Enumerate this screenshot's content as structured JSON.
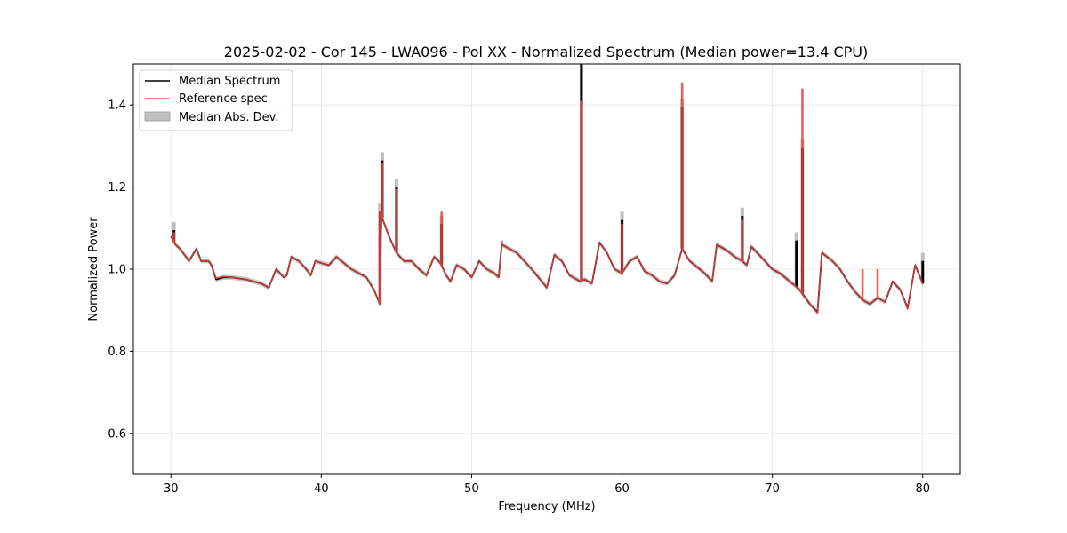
{
  "chart_data": {
    "type": "line",
    "title": "2025-02-02 - Cor 145 - LWA096 - Pol XX - Normalized Spectrum (Median power=13.4 CPU)",
    "xlabel": "Frequency (MHz)",
    "ylabel": "Normalized Power",
    "xlim": [
      27.5,
      82.5
    ],
    "ylim": [
      0.5,
      1.5
    ],
    "xticks": [
      30,
      40,
      50,
      60,
      70,
      80
    ],
    "yticks": [
      0.6,
      0.8,
      1.0,
      1.2,
      1.4
    ],
    "xtick_labels": [
      "30",
      "40",
      "50",
      "60",
      "70",
      "80"
    ],
    "ytick_labels": [
      "0.6",
      "0.8",
      "1.0",
      "1.2",
      "1.4"
    ],
    "grid": true,
    "legend_position": "top-left",
    "colors": {
      "median": "#000000",
      "reference": "#e8413c",
      "mad": "#bfbfbf"
    },
    "series": [
      {
        "name": "Median Spectrum",
        "x": [
          30.0,
          30.3,
          30.6,
          31.0,
          31.2,
          31.7,
          32.0,
          32.5,
          32.7,
          33.0,
          33.5,
          34.0,
          35.0,
          36.0,
          36.5,
          37.0,
          37.5,
          37.7,
          38.0,
          38.5,
          39.0,
          39.3,
          39.6,
          40.0,
          40.5,
          41.0,
          41.5,
          42.0,
          42.5,
          43.0,
          43.5,
          43.9,
          44.0,
          44.5,
          45.0,
          45.5,
          46.0,
          46.5,
          47.0,
          47.5,
          47.8,
          48.0,
          48.3,
          48.6,
          49.0,
          49.5,
          50.0,
          50.5,
          51.0,
          51.5,
          51.8,
          52.0,
          53.0,
          54.0,
          55.0,
          55.5,
          56.0,
          56.5,
          57.0,
          57.2,
          57.5,
          58.0,
          58.5,
          59.0,
          59.5,
          60.0,
          60.5,
          61.0,
          61.5,
          62.0,
          62.5,
          63.0,
          63.5,
          64.0,
          64.5,
          65.0,
          65.5,
          66.0,
          66.3,
          67.0,
          67.5,
          68.0,
          68.3,
          68.6,
          69.0,
          69.5,
          70.0,
          70.5,
          71.0,
          71.5,
          71.8,
          72.0,
          72.5,
          73.0,
          73.3,
          74.0,
          74.5,
          75.0,
          75.5,
          76.0,
          76.5,
          77.0,
          77.5,
          78.0,
          78.5,
          79.0,
          79.5,
          80.0
        ],
        "values": [
          1.08,
          1.06,
          1.05,
          1.03,
          1.02,
          1.05,
          1.02,
          1.02,
          1.01,
          0.975,
          0.98,
          0.98,
          0.975,
          0.965,
          0.955,
          1.0,
          0.98,
          0.985,
          1.03,
          1.02,
          1.0,
          0.985,
          1.02,
          1.015,
          1.01,
          1.03,
          1.015,
          1.0,
          0.99,
          0.98,
          0.95,
          0.915,
          1.13,
          1.08,
          1.04,
          1.02,
          1.02,
          1.0,
          0.985,
          1.03,
          1.02,
          1.01,
          0.985,
          0.97,
          1.01,
          1.0,
          0.98,
          1.02,
          1.0,
          0.99,
          0.98,
          1.06,
          1.04,
          1.0,
          0.955,
          1.035,
          1.02,
          0.985,
          0.975,
          0.97,
          0.975,
          0.965,
          1.065,
          1.04,
          1.0,
          0.99,
          1.02,
          1.03,
          0.995,
          0.985,
          0.97,
          0.965,
          0.985,
          1.05,
          1.02,
          1.005,
          0.99,
          0.97,
          1.06,
          1.045,
          1.03,
          1.02,
          1.01,
          1.055,
          1.04,
          1.02,
          1.0,
          0.99,
          0.975,
          0.96,
          0.95,
          0.94,
          0.915,
          0.895,
          1.04,
          1.02,
          1.0,
          0.97,
          0.945,
          0.925,
          0.915,
          0.93,
          0.92,
          0.97,
          0.95,
          0.905,
          1.01,
          0.965
        ],
        "spikes": [
          [
            30.2,
            1.095
          ],
          [
            43.9,
            1.14
          ],
          [
            44.05,
            1.265
          ],
          [
            45.0,
            1.2
          ],
          [
            48.0,
            1.11
          ],
          [
            57.3,
            1.5
          ],
          [
            60.0,
            1.12
          ],
          [
            64.0,
            1.395
          ],
          [
            68.0,
            1.13
          ],
          [
            71.6,
            1.07
          ],
          [
            72.0,
            1.295
          ],
          [
            80.0,
            1.02
          ]
        ]
      },
      {
        "name": "Reference spec",
        "x": [
          30.0,
          30.3,
          30.6,
          31.0,
          31.2,
          31.7,
          32.0,
          32.5,
          32.7,
          33.0,
          33.5,
          34.0,
          35.0,
          36.0,
          36.5,
          37.0,
          37.5,
          37.7,
          38.0,
          38.5,
          39.0,
          39.3,
          39.6,
          40.0,
          40.5,
          41.0,
          41.5,
          42.0,
          42.5,
          43.0,
          43.5,
          43.9,
          44.0,
          44.5,
          45.0,
          45.5,
          46.0,
          46.5,
          47.0,
          47.5,
          47.8,
          48.0,
          48.3,
          48.6,
          49.0,
          49.5,
          50.0,
          50.5,
          51.0,
          51.5,
          51.8,
          52.0,
          53.0,
          54.0,
          55.0,
          55.5,
          56.0,
          56.5,
          57.0,
          57.2,
          57.5,
          58.0,
          58.5,
          59.0,
          59.5,
          60.0,
          60.5,
          61.0,
          61.5,
          62.0,
          62.5,
          63.0,
          63.5,
          64.0,
          64.5,
          65.0,
          65.5,
          66.0,
          66.3,
          67.0,
          67.5,
          68.0,
          68.3,
          68.6,
          69.0,
          69.5,
          70.0,
          70.5,
          71.0,
          71.5,
          71.8,
          72.0,
          72.5,
          73.0,
          73.3,
          74.0,
          74.5,
          75.0,
          75.5,
          76.0,
          76.5,
          77.0,
          77.5,
          78.0,
          78.5,
          79.0,
          79.5,
          80.0
        ],
        "values": [
          1.08,
          1.06,
          1.05,
          1.03,
          1.02,
          1.05,
          1.02,
          1.02,
          1.01,
          0.978,
          0.982,
          0.98,
          0.975,
          0.965,
          0.955,
          1.0,
          0.98,
          0.985,
          1.03,
          1.02,
          1.0,
          0.985,
          1.02,
          1.015,
          1.01,
          1.03,
          1.015,
          1.0,
          0.99,
          0.98,
          0.95,
          0.915,
          1.13,
          1.08,
          1.04,
          1.02,
          1.02,
          1.0,
          0.985,
          1.03,
          1.02,
          1.01,
          0.985,
          0.97,
          1.01,
          1.0,
          0.98,
          1.02,
          1.0,
          0.99,
          0.98,
          1.06,
          1.04,
          1.0,
          0.955,
          1.035,
          1.02,
          0.985,
          0.975,
          0.97,
          0.975,
          0.965,
          1.065,
          1.04,
          1.0,
          0.99,
          1.02,
          1.03,
          0.995,
          0.985,
          0.97,
          0.965,
          0.985,
          1.05,
          1.02,
          1.005,
          0.99,
          0.97,
          1.06,
          1.045,
          1.03,
          1.02,
          1.01,
          1.055,
          1.04,
          1.02,
          1.0,
          0.99,
          0.975,
          0.96,
          0.95,
          0.94,
          0.915,
          0.893,
          1.04,
          1.02,
          1.0,
          0.97,
          0.945,
          0.925,
          0.915,
          0.93,
          0.92,
          0.97,
          0.95,
          0.903,
          1.01,
          0.963
        ],
        "spikes": [
          [
            30.2,
            1.09
          ],
          [
            43.9,
            1.14
          ],
          [
            44.05,
            1.26
          ],
          [
            45.0,
            1.195
          ],
          [
            48.0,
            1.14
          ],
          [
            52.0,
            1.07
          ],
          [
            57.3,
            1.41
          ],
          [
            60.0,
            1.11
          ],
          [
            64.0,
            1.455
          ],
          [
            68.0,
            1.12
          ],
          [
            72.0,
            1.44
          ],
          [
            76.0,
            1.0
          ],
          [
            77.0,
            1.0
          ]
        ]
      },
      {
        "name": "Median Abs. Dev.",
        "band_halfwidth": 0.006
      }
    ]
  }
}
